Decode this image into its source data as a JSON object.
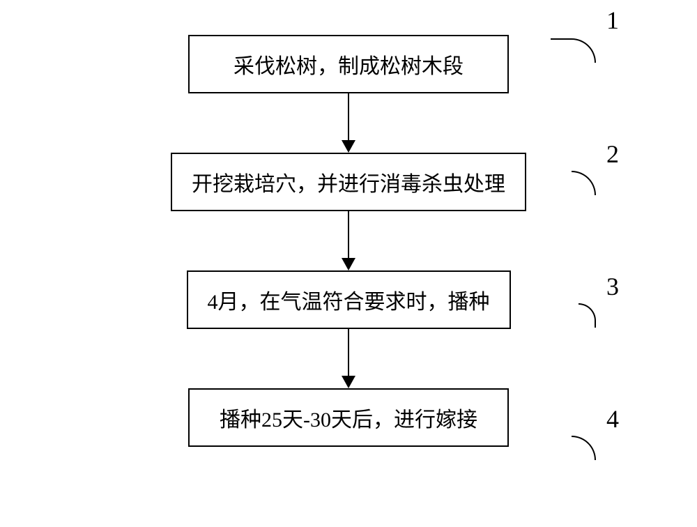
{
  "flowchart": {
    "type": "flowchart",
    "background_color": "#ffffff",
    "border_color": "#000000",
    "text_color": "#000000",
    "box_font_size": 30,
    "label_font_size": 36,
    "border_width": 2,
    "arrow_color": "#000000",
    "steps": [
      {
        "text": "采伐松树，制成松树木段",
        "label": "1"
      },
      {
        "text": "开挖栽培穴，并进行消毒杀虫处理",
        "label": "2"
      },
      {
        "text": "4月，在气温符合要求时，播种",
        "label": "3"
      },
      {
        "text": "播种25天-30天后，进行嫁接",
        "label": "4"
      }
    ]
  }
}
